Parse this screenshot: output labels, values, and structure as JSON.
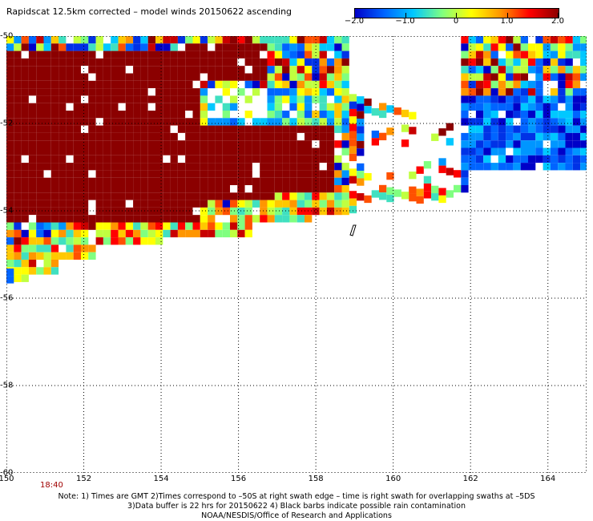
{
  "title": "Rapidscat 12.5km corrected – model winds 20150622 ascending",
  "colorbar": {
    "labels": [
      "−2.0",
      "−1.0",
      "0",
      "1.0",
      "2.0"
    ],
    "values": [
      -2.0,
      -1.0,
      0,
      1.0,
      2.0
    ],
    "colors": [
      "#0000c8",
      "#0064ff",
      "#00c8ff",
      "#80ff80",
      "#ffff00",
      "#ff9600",
      "#ff0000",
      "#8b0000"
    ]
  },
  "map": {
    "lat_labels": [
      "-50",
      "-52",
      "-54",
      "-56",
      "-58",
      "-60"
    ],
    "lon_labels": [
      "150",
      "152",
      "154",
      "156",
      "158",
      "160",
      "162",
      "164"
    ],
    "time_label": "18:40",
    "grid": "dotted"
  },
  "footer": {
    "line1": "Note: 1) Times are GMT 2)Times correspond to –50S at right swath edge – time is right swath for overlapping swaths at –5DS",
    "line2": "3)Data buffer is 22 hrs for 20150622 4) Black barbs indicate possible rain contamination",
    "line3": "NOAA/NESDIS/Office of Research and Applications"
  }
}
